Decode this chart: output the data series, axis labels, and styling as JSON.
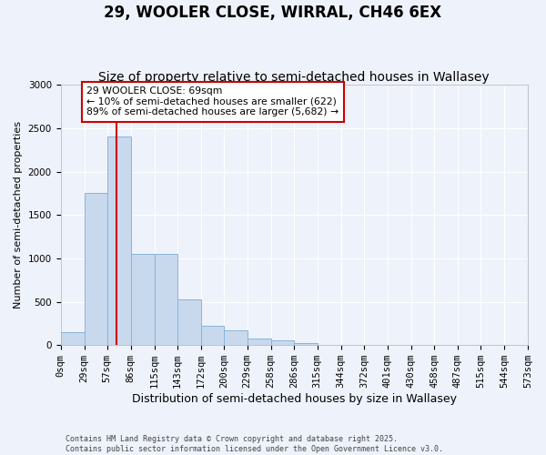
{
  "title": "29, WOOLER CLOSE, WIRRAL, CH46 6EX",
  "subtitle": "Size of property relative to semi-detached houses in Wallasey",
  "xlabel": "Distribution of semi-detached houses by size in Wallasey",
  "ylabel": "Number of semi-detached properties",
  "bar_color": "#c8d9ee",
  "bar_edge_color": "#8ab4d8",
  "background_color": "#eef2fa",
  "grid_color": "#ffffff",
  "property_size": 69,
  "property_line_color": "#cc0000",
  "annotation_text": "29 WOOLER CLOSE: 69sqm\n← 10% of semi-detached houses are smaller (622)\n89% of semi-detached houses are larger (5,682) →",
  "annotation_box_color": "#ffffff",
  "annotation_box_edge_color": "#cc0000",
  "bin_edges": [
    0,
    29,
    57,
    86,
    115,
    143,
    172,
    200,
    229,
    258,
    286,
    315,
    344,
    372,
    401,
    430,
    458,
    487,
    515,
    544,
    573
  ],
  "bin_counts": [
    150,
    1750,
    2400,
    1050,
    1050,
    525,
    225,
    175,
    75,
    50,
    20,
    5,
    0,
    0,
    0,
    0,
    0,
    0,
    0,
    0
  ],
  "ylim": [
    0,
    3000
  ],
  "yticks": [
    0,
    500,
    1000,
    1500,
    2000,
    2500,
    3000
  ],
  "footer_text": "Contains HM Land Registry data © Crown copyright and database right 2025.\nContains public sector information licensed under the Open Government Licence v3.0.",
  "title_fontsize": 12,
  "subtitle_fontsize": 10,
  "xlabel_fontsize": 9,
  "ylabel_fontsize": 8,
  "tick_fontsize": 7.5
}
